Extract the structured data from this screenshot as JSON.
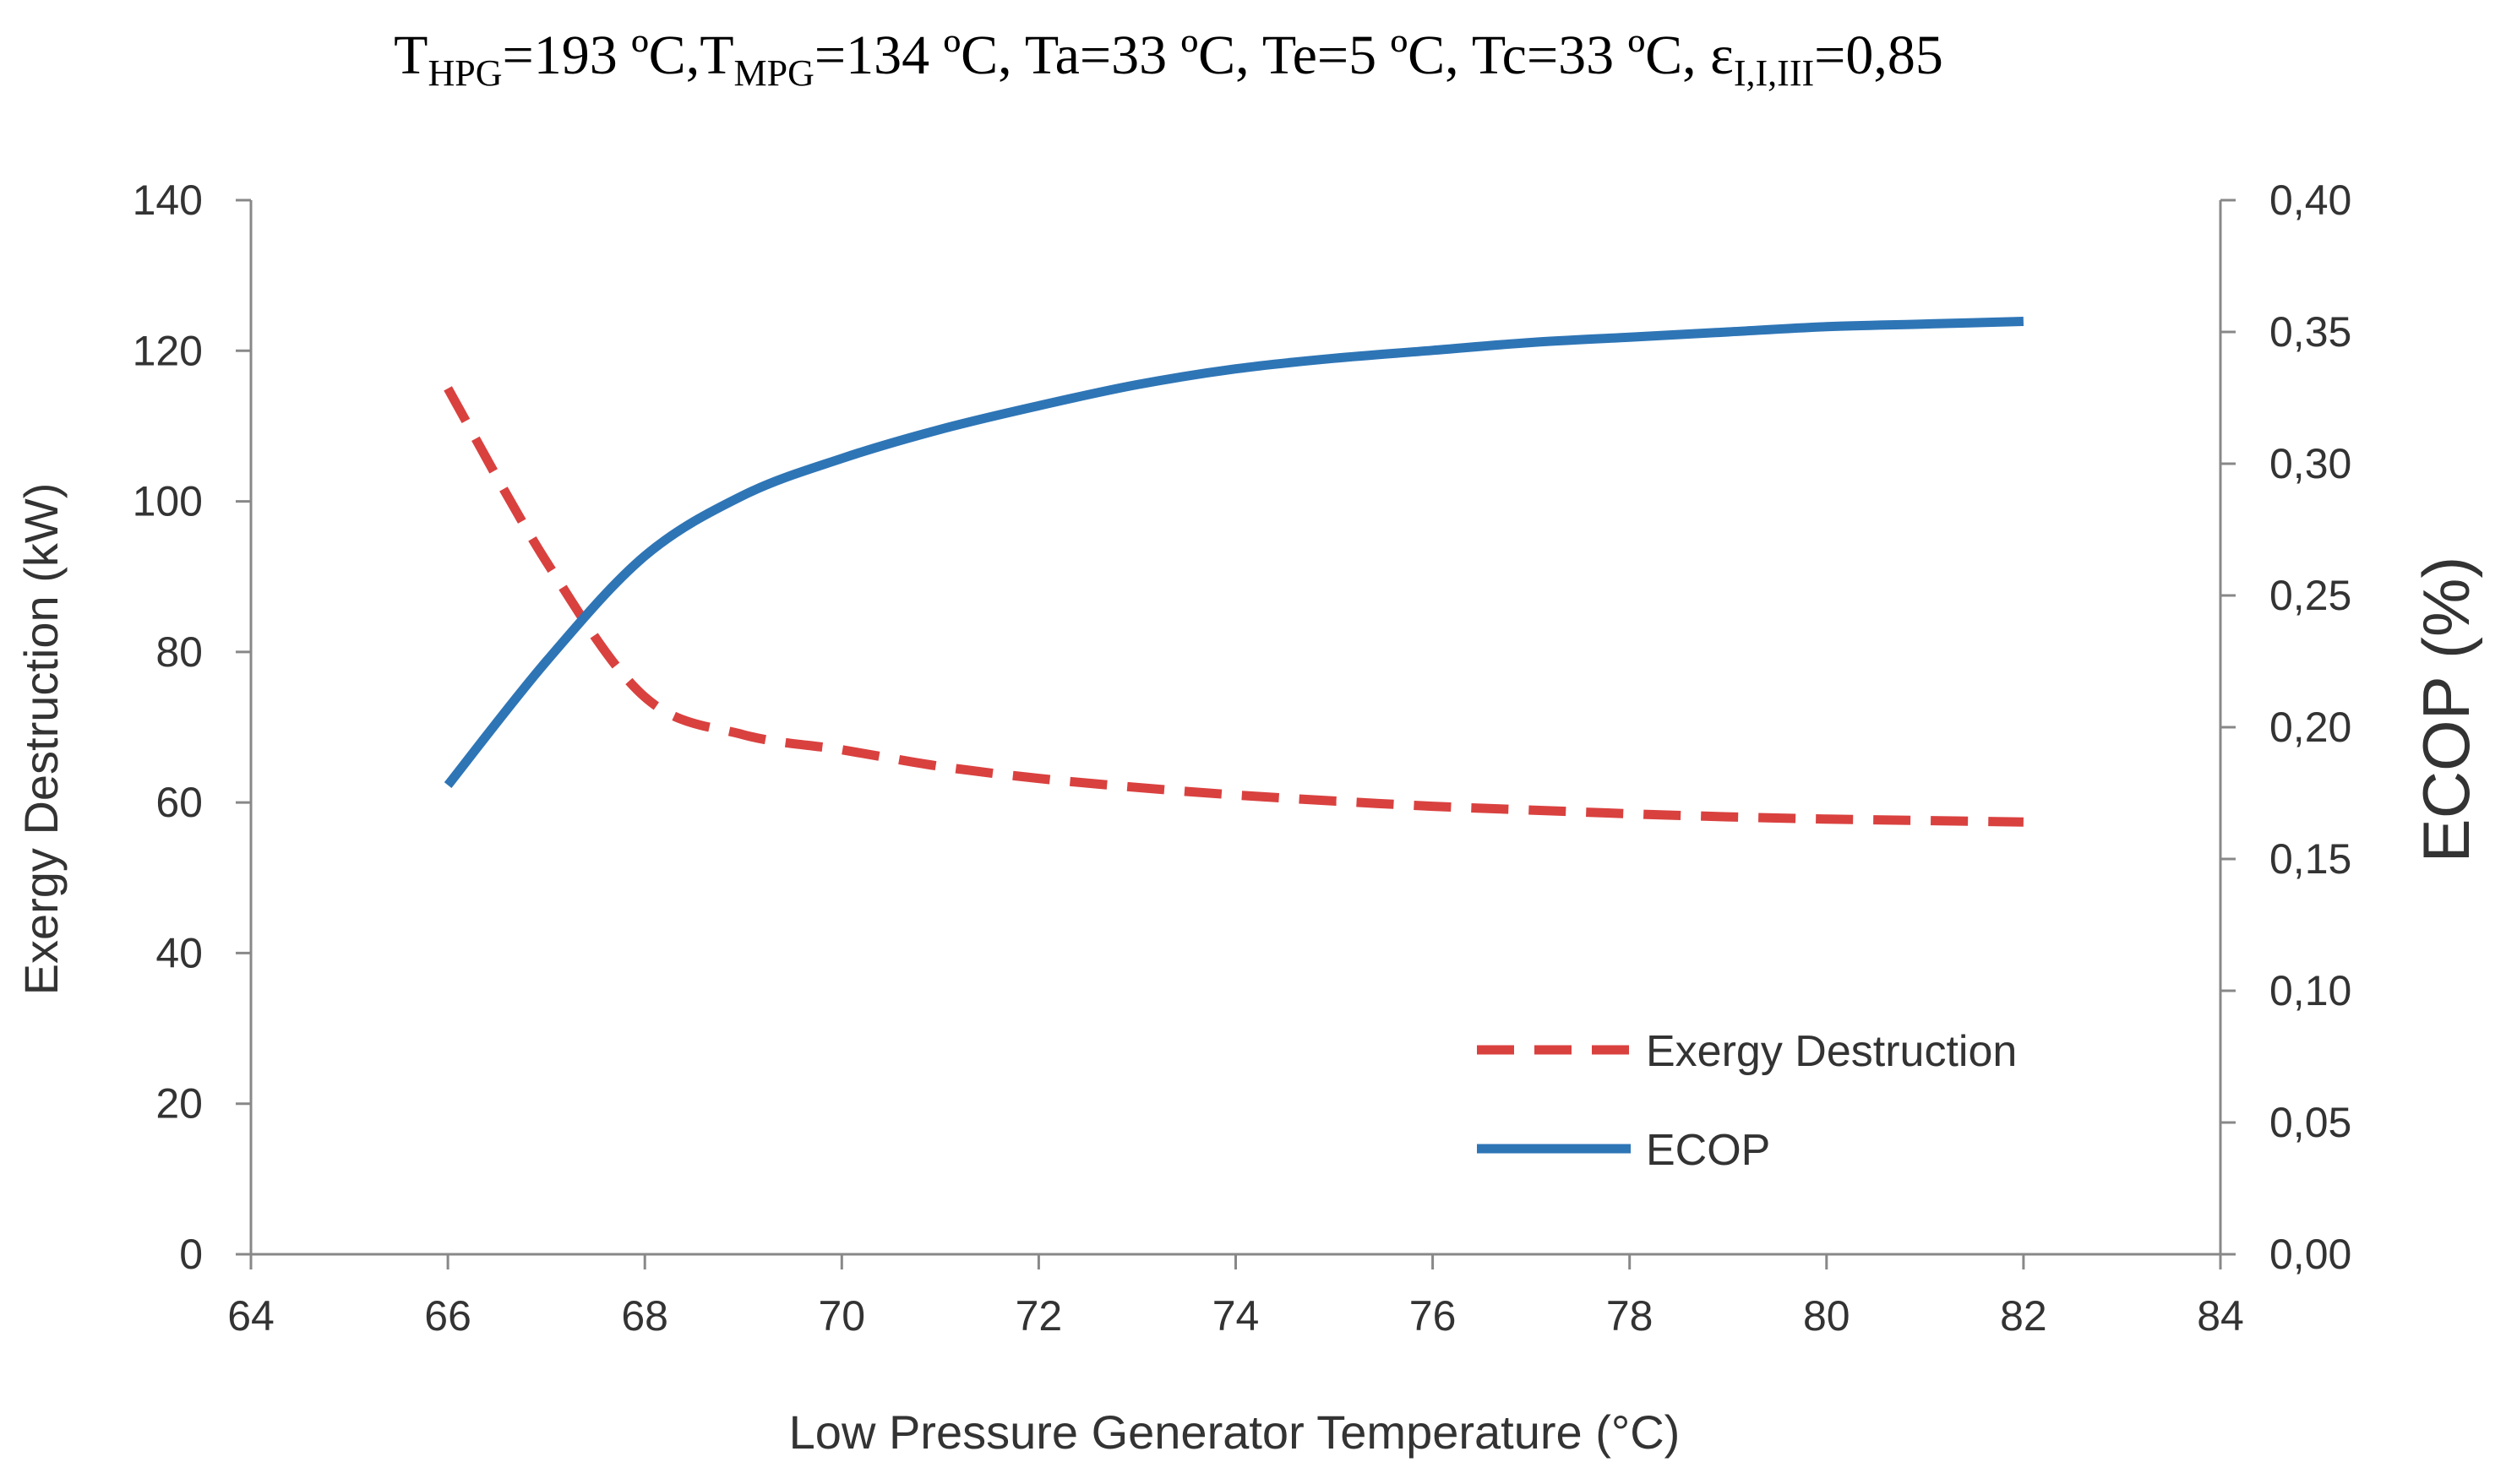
{
  "chart_data": {
    "type": "line",
    "title": {
      "parts": [
        {
          "text": "T",
          "sub": false
        },
        {
          "text": "HPG",
          "sub": true
        },
        {
          "text": "=193 ºC,T",
          "sub": false
        },
        {
          "text": "MPG",
          "sub": true
        },
        {
          "text": "=134 ºC, Ta=33 ºC, Te=5 ºC, Tc=33 ºC, ε",
          "sub": false
        },
        {
          "text": "I,I,III",
          "sub": true
        },
        {
          "text": "=0,85",
          "sub": false
        }
      ]
    },
    "xlabel": "Low Pressure Generator Temperature (°C)",
    "ylabel_left": "Exergy Destruction (kW)",
    "ylabel_right": "ECOP (%)",
    "xlim": [
      64,
      84
    ],
    "ylim_left": [
      0,
      140
    ],
    "ylim_right": [
      0,
      0.4
    ],
    "x_ticks": [
      "64",
      "66",
      "68",
      "70",
      "72",
      "74",
      "76",
      "78",
      "80",
      "82",
      "84"
    ],
    "y_left_ticks": [
      "0",
      "20",
      "40",
      "60",
      "80",
      "100",
      "120",
      "140"
    ],
    "y_right_ticks": [
      "0,00",
      "0,05",
      "0,10",
      "0,15",
      "0,20",
      "0,25",
      "0,30",
      "0,35",
      "0,40"
    ],
    "grid": false,
    "legend_position": "bottom-right",
    "series": [
      {
        "name": "Exergy Destruction",
        "axis": "left",
        "style": "dashed",
        "color": "#d9413f",
        "x": [
          66,
          67,
          68,
          69,
          70,
          71,
          72,
          73,
          74,
          75,
          76,
          77,
          78,
          79,
          80,
          81,
          82
        ],
        "y": [
          115,
          92,
          74,
          69,
          67,
          64.8,
          63.2,
          62,
          61,
          60.2,
          59.5,
          59,
          58.5,
          58.1,
          57.8,
          57.6,
          57.4
        ]
      },
      {
        "name": "ECOP",
        "axis": "right",
        "style": "solid",
        "color": "#2e75b6",
        "x": [
          66,
          67,
          68,
          69,
          70,
          71,
          72,
          73,
          74,
          75,
          76,
          77,
          78,
          79,
          80,
          81,
          82
        ],
        "y": [
          0.178,
          0.225,
          0.265,
          0.288,
          0.302,
          0.313,
          0.322,
          0.33,
          0.336,
          0.34,
          0.343,
          0.346,
          0.348,
          0.35,
          0.352,
          0.353,
          0.354
        ]
      }
    ]
  }
}
